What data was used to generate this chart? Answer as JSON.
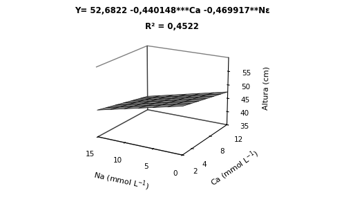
{
  "intercept": 52.6822,
  "coef_ca": -0.440148,
  "coef_na": -0.469917,
  "na_min": 0,
  "na_max": 15,
  "ca_min": 2,
  "ca_max": 12,
  "zlim": [
    35,
    60
  ],
  "zticks": [
    35,
    40,
    45,
    50,
    55
  ],
  "ca_ticks": [
    2,
    4,
    8,
    12
  ],
  "na_ticks": [
    0,
    5,
    10,
    15
  ],
  "surface_color": "#c8c8c8",
  "surface_alpha": 0.9,
  "edge_color": "#000000",
  "background_color": "#ffffff",
  "title_line1": "Y= 52,6822 -0,440148***Ca -0,469917**Nε",
  "title_line2": "R² = 0,4522",
  "xlabel": "Na (mmol L",
  "ylabel": "Ca (mmol L",
  "zlabel": "Altura (cm)",
  "title_fontsize": 8.5,
  "axis_fontsize": 8,
  "tick_fontsize": 7.5,
  "elev": 18,
  "azim": -60,
  "n_grid": 7
}
